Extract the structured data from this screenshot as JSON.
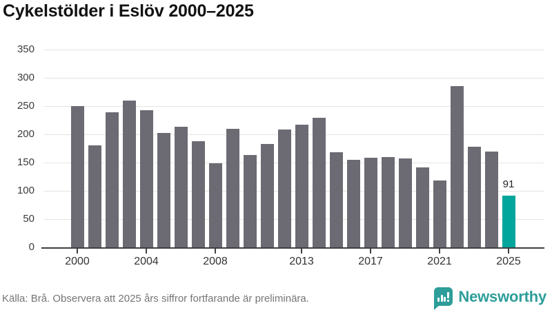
{
  "title": "Cykelstölder i Eslöv 2000–2025",
  "chart_data": {
    "type": "bar",
    "title": "Cykelstölder i Eslöv 2000–2025",
    "categories": [
      "2000",
      "2001",
      "2002",
      "2003",
      "2004",
      "2005",
      "2006",
      "2007",
      "2008",
      "2009",
      "2010",
      "2011",
      "2012",
      "2013",
      "2014",
      "2015",
      "2016",
      "2017",
      "2018",
      "2019",
      "2020",
      "2021",
      "2022",
      "2023",
      "2024",
      "2025"
    ],
    "values": [
      250,
      181,
      239,
      260,
      243,
      203,
      213,
      188,
      149,
      210,
      163,
      183,
      208,
      217,
      229,
      168,
      155,
      158,
      160,
      157,
      141,
      118,
      285,
      178,
      170,
      91
    ],
    "ylim": [
      0,
      350
    ],
    "yticks": [
      0,
      50,
      100,
      150,
      200,
      250,
      300,
      350
    ],
    "xtick_labels": [
      "2000",
      "2004",
      "2008",
      "2013",
      "2017",
      "2021",
      "2025"
    ],
    "grid": true,
    "legend_position": "none",
    "bar_color": "#6c6b73",
    "highlight_index": 25,
    "highlight_color": "#00a69c",
    "annotation": {
      "index": 25,
      "text": "91"
    }
  },
  "footer": {
    "source": "Källa: Brå. Observera att 2025 års siffror fortfarande är preliminära.",
    "brand": "Newsworthy",
    "brand_color": "#2d9d99"
  }
}
